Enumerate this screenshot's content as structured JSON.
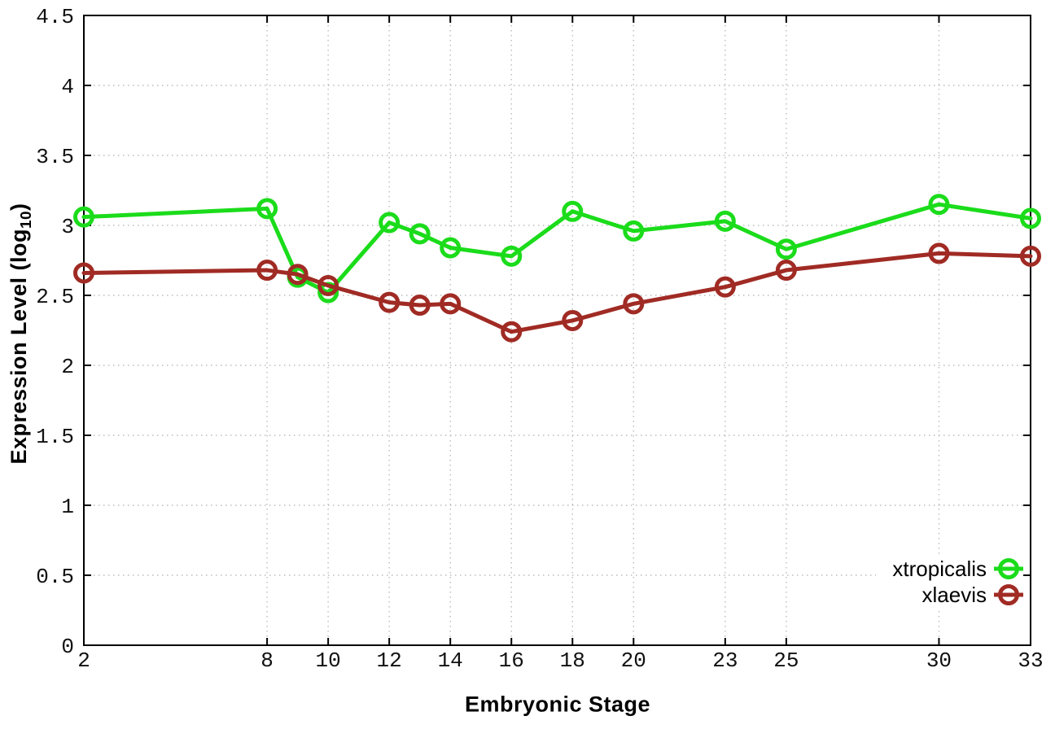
{
  "chart": {
    "xlabel": "Embryonic Stage",
    "ylabel_prefix": "Expression Level (log",
    "ylabel_sub": "10",
    "ylabel_suffix": ")"
  },
  "chart_data": {
    "type": "line",
    "title": "",
    "xlabel": "Embryonic Stage",
    "ylabel": "Expression Level (log10)",
    "x": [
      2,
      8,
      9,
      10,
      12,
      13,
      14,
      16,
      18,
      20,
      23,
      25,
      30,
      33
    ],
    "series": [
      {
        "name": "xtropicalis",
        "color": "#1bdc1b",
        "values": [
          3.06,
          3.12,
          2.63,
          2.52,
          3.02,
          2.94,
          2.84,
          2.78,
          3.1,
          2.96,
          3.03,
          2.83,
          3.15,
          3.05
        ]
      },
      {
        "name": "xlaevis",
        "color": "#a02b24",
        "values": [
          2.66,
          2.68,
          2.65,
          2.57,
          2.45,
          2.43,
          2.44,
          2.24,
          2.32,
          2.44,
          2.56,
          2.68,
          2.8,
          2.78
        ]
      }
    ],
    "xlim": [
      2,
      33
    ],
    "ylim": [
      0,
      4.5
    ],
    "xtick_values": [
      2,
      8,
      10,
      12,
      14,
      16,
      18,
      20,
      23,
      25,
      30,
      33
    ],
    "xtick_labels": [
      "2",
      "8",
      "10",
      "12",
      "14",
      "16",
      "18",
      "20",
      "23",
      "25",
      "30",
      "33"
    ],
    "ytick_values": [
      0,
      0.5,
      1,
      1.5,
      2,
      2.5,
      3,
      3.5,
      4,
      4.5
    ],
    "ytick_labels": [
      "0",
      "0.5",
      "1",
      "1.5",
      "2",
      "2.5",
      "3",
      "3.5",
      "4",
      "4.5"
    ],
    "grid": true,
    "legend_position": "inside-bottom-right",
    "legend_entries": [
      "xtropicalis",
      "xlaevis"
    ],
    "colors": {
      "axis": "#000000",
      "tick_text": "#111111",
      "grid": "#bcbcbc",
      "background": "#ffffff"
    }
  }
}
